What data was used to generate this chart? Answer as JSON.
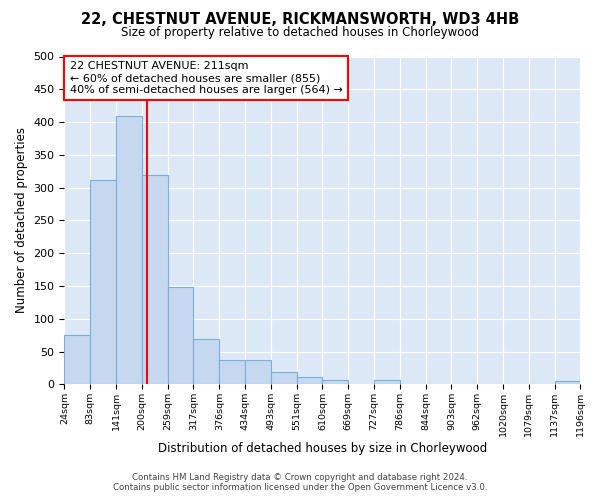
{
  "title1": "22, CHESTNUT AVENUE, RICKMANSWORTH, WD3 4HB",
  "title2": "Size of property relative to detached houses in Chorleywood",
  "xlabel": "Distribution of detached houses by size in Chorleywood",
  "ylabel": "Number of detached properties",
  "bin_labels": [
    "24sqm",
    "83sqm",
    "141sqm",
    "200sqm",
    "259sqm",
    "317sqm",
    "376sqm",
    "434sqm",
    "493sqm",
    "551sqm",
    "610sqm",
    "669sqm",
    "727sqm",
    "786sqm",
    "844sqm",
    "903sqm",
    "962sqm",
    "1020sqm",
    "1079sqm",
    "1137sqm",
    "1196sqm"
  ],
  "bin_values": [
    75,
    311,
    409,
    320,
    148,
    70,
    37,
    37,
    19,
    12,
    7,
    0,
    7,
    0,
    0,
    0,
    0,
    0,
    0,
    5
  ],
  "bar_color": "#c5d8f0",
  "bar_edge_color": "#7aaedb",
  "marker_color": "red",
  "annotation_title": "22 CHESTNUT AVENUE: 211sqm",
  "annotation_line1": "← 60% of detached houses are smaller (855)",
  "annotation_line2": "40% of semi-detached houses are larger (564) →",
  "annotation_box_color": "white",
  "annotation_box_edge": "red",
  "ylim": [
    0,
    500
  ],
  "yticks": [
    0,
    50,
    100,
    150,
    200,
    250,
    300,
    350,
    400,
    450,
    500
  ],
  "footer1": "Contains HM Land Registry data © Crown copyright and database right 2024.",
  "footer2": "Contains public sector information licensed under the Open Government Licence v3.0.",
  "fig_bg_color": "#ffffff",
  "plot_bg_color": "#dce8f5"
}
